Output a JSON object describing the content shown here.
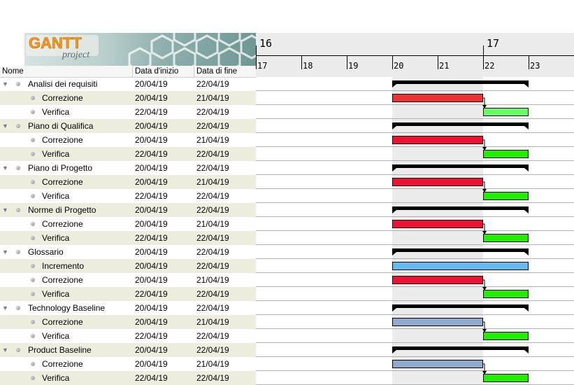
{
  "logo": {
    "brand": "GANTT",
    "sub": "project"
  },
  "columns": {
    "name": "Nome",
    "start": "Data d'inizio",
    "end": "Data di fine"
  },
  "timeline": {
    "weeks": [
      {
        "label": "16",
        "day_index": 0
      },
      {
        "label": "17",
        "day_index": 5
      }
    ],
    "days": [
      "17",
      "18",
      "19",
      "20",
      "21",
      "22",
      "23"
    ]
  },
  "colors": {
    "red": "#ee1133",
    "green": "#22ee00",
    "light_green": "#66ff66",
    "blue": "#66bbee",
    "steel": "#8faacc",
    "summary": "#000000",
    "weekend": "#ececec"
  },
  "tasks": [
    {
      "name": "Analisi dei requisiti",
      "start": "20/04/19",
      "end": "22/04/19",
      "level": 0,
      "kind": "summary",
      "bar_start": 3,
      "bar_end": 6
    },
    {
      "name": "Correzione",
      "start": "20/04/19",
      "end": "21/04/19",
      "level": 1,
      "kind": "task",
      "color": "#ee3333",
      "bar_start": 3,
      "bar_end": 5,
      "arrow": true
    },
    {
      "name": "Verifica",
      "start": "22/04/19",
      "end": "22/04/19",
      "level": 1,
      "kind": "task",
      "color": "#66ff66",
      "bar_start": 5,
      "bar_end": 6
    },
    {
      "name": "Piano di Qualifica",
      "start": "20/04/19",
      "end": "22/04/19",
      "level": 0,
      "kind": "summary",
      "bar_start": 3,
      "bar_end": 6
    },
    {
      "name": "Correzione",
      "start": "20/04/19",
      "end": "21/04/19",
      "level": 1,
      "kind": "task",
      "color": "#ee1133",
      "bar_start": 3,
      "bar_end": 5,
      "arrow": true
    },
    {
      "name": "Verifica",
      "start": "22/04/19",
      "end": "22/04/19",
      "level": 1,
      "kind": "task",
      "color": "#22ee00",
      "bar_start": 5,
      "bar_end": 6
    },
    {
      "name": "Piano di Progetto",
      "start": "20/04/19",
      "end": "22/04/19",
      "level": 0,
      "kind": "summary",
      "bar_start": 3,
      "bar_end": 6
    },
    {
      "name": "Correzione",
      "start": "20/04/19",
      "end": "21/04/19",
      "level": 1,
      "kind": "task",
      "color": "#ee1133",
      "bar_start": 3,
      "bar_end": 5,
      "arrow": true
    },
    {
      "name": "Verifica",
      "start": "22/04/19",
      "end": "22/04/19",
      "level": 1,
      "kind": "task",
      "color": "#22ee00",
      "bar_start": 5,
      "bar_end": 6
    },
    {
      "name": "Norme di Progetto",
      "start": "20/04/19",
      "end": "22/04/19",
      "level": 0,
      "kind": "summary",
      "bar_start": 3,
      "bar_end": 6
    },
    {
      "name": "Correzione",
      "start": "20/04/19",
      "end": "21/04/19",
      "level": 1,
      "kind": "task",
      "color": "#ee1133",
      "bar_start": 3,
      "bar_end": 5,
      "arrow": true
    },
    {
      "name": "Verifica",
      "start": "22/04/19",
      "end": "22/04/19",
      "level": 1,
      "kind": "task",
      "color": "#22ee00",
      "bar_start": 5,
      "bar_end": 6
    },
    {
      "name": "Glossario",
      "start": "20/04/19",
      "end": "22/04/19",
      "level": 0,
      "kind": "summary",
      "bar_start": 3,
      "bar_end": 6
    },
    {
      "name": "Incremento",
      "start": "20/04/19",
      "end": "22/04/19",
      "level": 1,
      "kind": "task",
      "color": "#66bbee",
      "bar_start": 3,
      "bar_end": 6
    },
    {
      "name": "Correzione",
      "start": "20/04/19",
      "end": "21/04/19",
      "level": 1,
      "kind": "task",
      "color": "#ee1133",
      "bar_start": 3,
      "bar_end": 5,
      "arrow": true
    },
    {
      "name": "Verifica",
      "start": "22/04/19",
      "end": "22/04/19",
      "level": 1,
      "kind": "task",
      "color": "#22ee00",
      "bar_start": 5,
      "bar_end": 6
    },
    {
      "name": "Technology Baseline",
      "start": "20/04/19",
      "end": "22/04/19",
      "level": 0,
      "kind": "summary",
      "bar_start": 3,
      "bar_end": 6
    },
    {
      "name": "Correzione",
      "start": "20/04/19",
      "end": "21/04/19",
      "level": 1,
      "kind": "task",
      "color": "#8faacc",
      "bar_start": 3,
      "bar_end": 5,
      "arrow": true
    },
    {
      "name": "Verifica",
      "start": "22/04/19",
      "end": "22/04/19",
      "level": 1,
      "kind": "task",
      "color": "#22ee00",
      "bar_start": 5,
      "bar_end": 6
    },
    {
      "name": "Product Baseline",
      "start": "20/04/19",
      "end": "22/04/19",
      "level": 0,
      "kind": "summary",
      "bar_start": 3,
      "bar_end": 6
    },
    {
      "name": "Correzione",
      "start": "20/04/19",
      "end": "21/04/19",
      "level": 1,
      "kind": "task",
      "color": "#8faacc",
      "bar_start": 3,
      "bar_end": 5,
      "arrow": true
    },
    {
      "name": "Verifica",
      "start": "22/04/19",
      "end": "22/04/19",
      "level": 1,
      "kind": "task",
      "color": "#22ee00",
      "bar_start": 5,
      "bar_end": 6
    }
  ]
}
